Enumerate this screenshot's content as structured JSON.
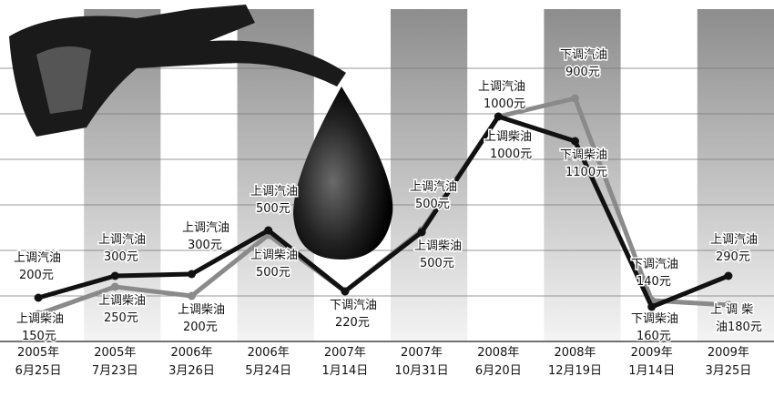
{
  "chart_data": {
    "type": "line",
    "categories": [
      [
        "2005年",
        "6月25日"
      ],
      [
        "2005年",
        "7月23日"
      ],
      [
        "2006年",
        "3月26日"
      ],
      [
        "2006年",
        "5月24日"
      ],
      [
        "2007年",
        "1月14日"
      ],
      [
        "2007年",
        "10月31日"
      ],
      [
        "2008年",
        "6月20日"
      ],
      [
        "2008年",
        "12月19日"
      ],
      [
        "2009年",
        "1月14日"
      ],
      [
        "2009年",
        "3月25日"
      ]
    ],
    "ylim": [
      0,
      365
    ],
    "series": [
      {
        "color": "#111111",
        "values": [
          48,
          72,
          74,
          122,
          55,
          120,
          247,
          220,
          38,
          72
        ]
      },
      {
        "color": "#8a8a8a",
        "values": [
          30,
          60,
          50,
          117,
          55,
          122,
          247,
          267,
          45,
          40
        ]
      }
    ],
    "annotations": [
      [
        "上调汽油",
        "200元"
      ],
      [
        "上调柴油",
        "150元"
      ],
      [
        "上调汽油",
        "300元"
      ],
      [
        "上调柴油",
        "250元"
      ],
      [
        "上调汽油",
        "300元"
      ],
      [
        "上调柴油",
        "200元"
      ],
      [
        "上调汽油",
        "500元"
      ],
      [
        "上调柴油",
        "500元"
      ],
      [
        "下调汽油",
        "220元"
      ],
      [
        "上调汽油",
        "500元"
      ],
      [
        "上调柴油",
        "500元"
      ],
      [
        "上调汽油",
        "1000元"
      ],
      [
        "上调柴油",
        "1000元"
      ],
      [
        "下调汽油",
        "900元"
      ],
      [
        "下调柴油",
        "1100元"
      ],
      [
        "下调汽油",
        "140元"
      ],
      [
        "下调柴油",
        "160元"
      ],
      [
        "上调汽油",
        "290元"
      ],
      [
        "上 调 柴",
        "油180元"
      ]
    ]
  }
}
